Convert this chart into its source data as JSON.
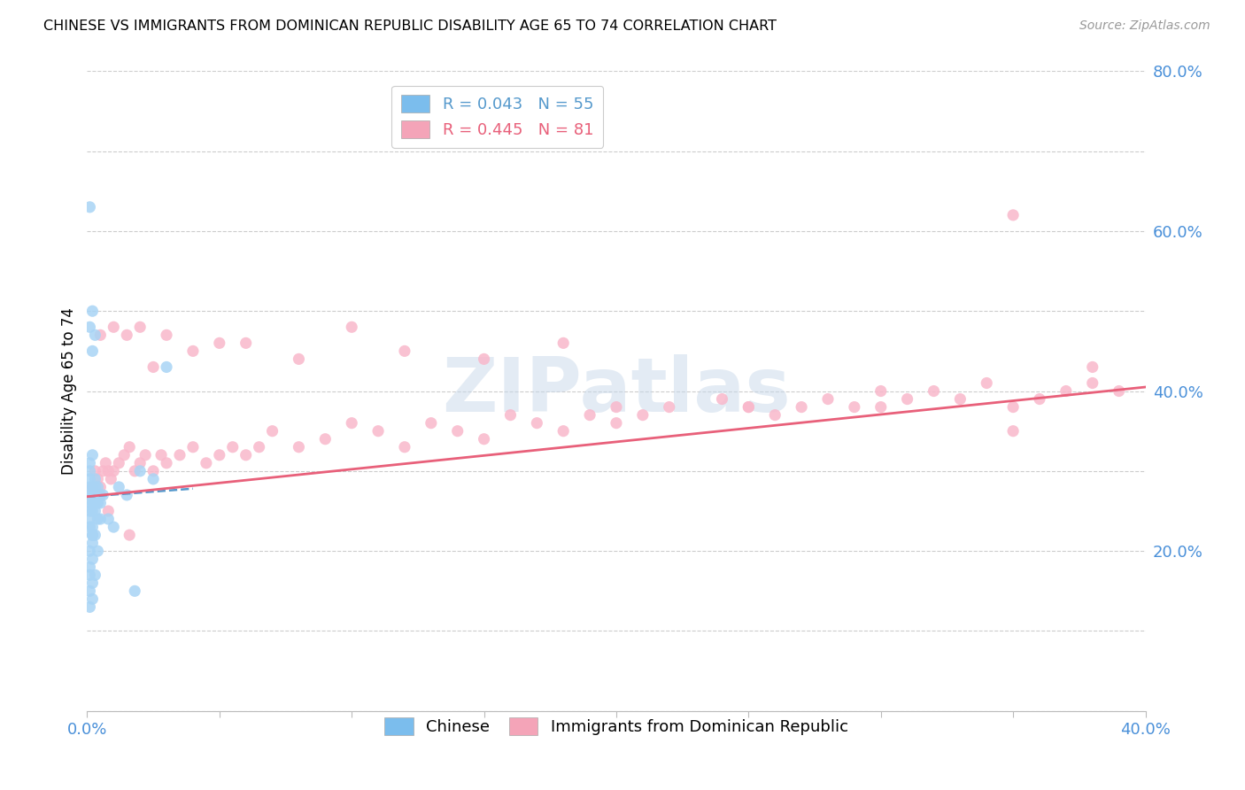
{
  "title": "CHINESE VS IMMIGRANTS FROM DOMINICAN REPUBLIC DISABILITY AGE 65 TO 74 CORRELATION CHART",
  "source": "Source: ZipAtlas.com",
  "ylabel": "Disability Age 65 to 74",
  "legend1_color": "#7bbded",
  "legend2_color": "#f4a4b8",
  "trendline1_color": "#5599cc",
  "trendline2_color": "#e8607a",
  "scatter_color1": "#a8d4f5",
  "scatter_color2": "#f9b8cb",
  "xlim": [
    0.0,
    0.4
  ],
  "ylim": [
    0.0,
    0.8
  ],
  "chinese_x": [
    0.001,
    0.001,
    0.001,
    0.001,
    0.001,
    0.001,
    0.002,
    0.002,
    0.002,
    0.002,
    0.002,
    0.002,
    0.003,
    0.003,
    0.003,
    0.003,
    0.003,
    0.004,
    0.004,
    0.004,
    0.004,
    0.005,
    0.005,
    0.005,
    0.006,
    0.001,
    0.001,
    0.002,
    0.002,
    0.003,
    0.001,
    0.002,
    0.001,
    0.001,
    0.002,
    0.003,
    0.004,
    0.001,
    0.002,
    0.001,
    0.002,
    0.001,
    0.002,
    0.003,
    0.001,
    0.002,
    0.001,
    0.008,
    0.01,
    0.012,
    0.015,
    0.018,
    0.02,
    0.025,
    0.03
  ],
  "chinese_y": [
    0.27,
    0.26,
    0.28,
    0.25,
    0.29,
    0.24,
    0.27,
    0.26,
    0.28,
    0.25,
    0.23,
    0.22,
    0.27,
    0.26,
    0.28,
    0.25,
    0.29,
    0.27,
    0.26,
    0.28,
    0.24,
    0.27,
    0.26,
    0.24,
    0.27,
    0.63,
    0.48,
    0.5,
    0.45,
    0.47,
    0.3,
    0.32,
    0.31,
    0.2,
    0.21,
    0.22,
    0.2,
    0.17,
    0.16,
    0.15,
    0.14,
    0.18,
    0.19,
    0.17,
    0.23,
    0.22,
    0.13,
    0.24,
    0.23,
    0.28,
    0.27,
    0.15,
    0.3,
    0.29,
    0.43
  ],
  "dr_x": [
    0.002,
    0.003,
    0.004,
    0.005,
    0.006,
    0.007,
    0.008,
    0.009,
    0.01,
    0.012,
    0.014,
    0.016,
    0.018,
    0.02,
    0.022,
    0.025,
    0.028,
    0.03,
    0.035,
    0.04,
    0.045,
    0.05,
    0.055,
    0.06,
    0.065,
    0.07,
    0.08,
    0.09,
    0.1,
    0.11,
    0.12,
    0.13,
    0.14,
    0.15,
    0.16,
    0.17,
    0.18,
    0.19,
    0.2,
    0.21,
    0.22,
    0.24,
    0.25,
    0.26,
    0.27,
    0.28,
    0.29,
    0.3,
    0.31,
    0.32,
    0.33,
    0.34,
    0.35,
    0.36,
    0.37,
    0.38,
    0.39,
    0.005,
    0.01,
    0.015,
    0.02,
    0.03,
    0.04,
    0.06,
    0.08,
    0.1,
    0.12,
    0.15,
    0.18,
    0.2,
    0.25,
    0.3,
    0.35,
    0.38,
    0.008,
    0.016,
    0.025,
    0.05,
    0.35
  ],
  "dr_y": [
    0.28,
    0.3,
    0.29,
    0.28,
    0.3,
    0.31,
    0.3,
    0.29,
    0.3,
    0.31,
    0.32,
    0.33,
    0.3,
    0.31,
    0.32,
    0.3,
    0.32,
    0.31,
    0.32,
    0.33,
    0.31,
    0.32,
    0.33,
    0.32,
    0.33,
    0.35,
    0.33,
    0.34,
    0.36,
    0.35,
    0.33,
    0.36,
    0.35,
    0.34,
    0.37,
    0.36,
    0.35,
    0.37,
    0.38,
    0.37,
    0.38,
    0.39,
    0.38,
    0.37,
    0.38,
    0.39,
    0.38,
    0.4,
    0.39,
    0.4,
    0.39,
    0.41,
    0.38,
    0.39,
    0.4,
    0.41,
    0.4,
    0.47,
    0.48,
    0.47,
    0.48,
    0.47,
    0.45,
    0.46,
    0.44,
    0.48,
    0.45,
    0.44,
    0.46,
    0.36,
    0.38,
    0.38,
    0.35,
    0.43,
    0.25,
    0.22,
    0.43,
    0.46,
    0.62
  ],
  "trendline1_x": [
    0.0,
    0.04
  ],
  "trendline1_y": [
    0.268,
    0.278
  ],
  "trendline2_x": [
    0.0,
    0.4
  ],
  "trendline2_y": [
    0.268,
    0.405
  ]
}
